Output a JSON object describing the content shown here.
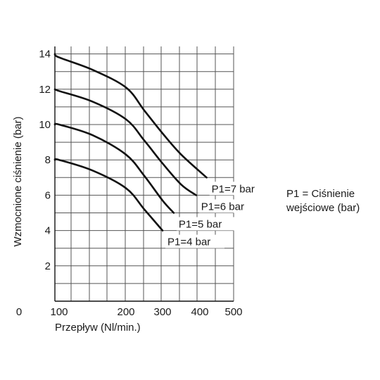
{
  "chart_data": {
    "type": "line",
    "title": "",
    "xlabel": "Przepływ (Nl/min.)",
    "ylabel": "Wzmocnione ciśnienie (bar)",
    "x_origin_label": "0",
    "x_ticks": [
      "100",
      "200",
      "300",
      "400",
      "500"
    ],
    "y_ticks": [
      "2",
      "4",
      "6",
      "8",
      "10",
      "12",
      "14"
    ],
    "xlim": [
      75,
      500
    ],
    "ylim": [
      0,
      14.5
    ],
    "grid": true,
    "series": [
      {
        "name": "P1=4 bar",
        "x": [
          75,
          100,
          150,
          200,
          250,
          300
        ],
        "y": [
          8.0,
          8.0,
          7.4,
          6.4,
          5.2,
          4.0
        ]
      },
      {
        "name": "P1=5 bar",
        "x": [
          75,
          100,
          150,
          200,
          250,
          300,
          330
        ],
        "y": [
          10.0,
          10.0,
          9.4,
          8.3,
          7.1,
          5.7,
          5.0
        ]
      },
      {
        "name": "P1=6 bar",
        "x": [
          75,
          100,
          150,
          200,
          250,
          300,
          350,
          390
        ],
        "y": [
          12.0,
          11.9,
          11.3,
          10.3,
          9.1,
          7.8,
          6.6,
          6.0
        ]
      },
      {
        "name": "P1=7 bar",
        "x": [
          75,
          100,
          150,
          200,
          250,
          300,
          350,
          420
        ],
        "y": [
          14.0,
          13.8,
          13.1,
          12.1,
          10.8,
          9.5,
          8.3,
          7.0
        ]
      }
    ],
    "note": "P1 = Ciśnienie wejściowe (bar)"
  }
}
